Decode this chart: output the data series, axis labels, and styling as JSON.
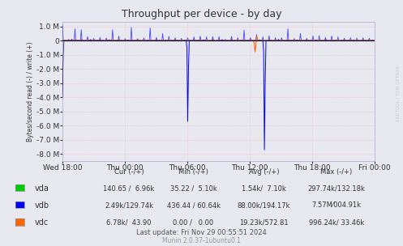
{
  "title": "Throughput per device - by day",
  "ylabel": "Bytes/second read (-) / write (+)",
  "plot_bg_color": "#e8e8f0",
  "ylim": [
    -8500000,
    1300000
  ],
  "yticks": [
    -8000000,
    -7000000,
    -6000000,
    -5000000,
    -4000000,
    -3000000,
    -2000000,
    -1000000,
    0,
    1000000
  ],
  "xtick_labels": [
    "Wed 18:00",
    "Thu 00:00",
    "Thu 06:00",
    "Thu 12:00",
    "Thu 18:00",
    "Fri 00:00"
  ],
  "vda_color": "#00cc00",
  "vdb_color": "#0000ff",
  "vdc_color": "#ff6600",
  "vda_dark_color": "#006600",
  "legend_header": [
    "",
    "Cur (-/+)",
    "Min (-/+)",
    "Avg (-/+)",
    "Max (-/+)"
  ],
  "legend_rows": [
    [
      "vda",
      "140.65 /  6.96k",
      "35.22 /  5.10k",
      "1.54k/  7.10k",
      "297.74k/132.18k"
    ],
    [
      "vdb",
      "2.49k/129.74k",
      "436.44 / 60.64k",
      "88.00k/194.17k",
      "7.57M⁄004.91k"
    ],
    [
      "vdc",
      "6.78k/  43.90",
      "0.00 /   0.00",
      "19.23k/572.81",
      "996.24k/ 33.46k"
    ]
  ],
  "footer": "Munin 2.0.37-1ubuntu0.1",
  "last_update": "Last update: Fri Nov 29 00:55:51 2024",
  "watermark": "RRDTOOL / TOBI OETIKER"
}
